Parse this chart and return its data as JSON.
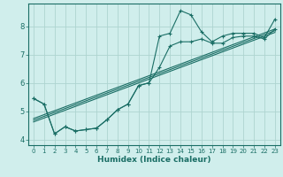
{
  "xlabel": "Humidex (Indice chaleur)",
  "bg_color": "#d0eeec",
  "grid_color": "#aed4d0",
  "line_color": "#1a6e65",
  "xlim": [
    -0.5,
    23.5
  ],
  "ylim": [
    3.8,
    8.8
  ],
  "yticks": [
    4,
    5,
    6,
    7,
    8
  ],
  "xticks": [
    0,
    1,
    2,
    3,
    4,
    5,
    6,
    7,
    8,
    9,
    10,
    11,
    12,
    13,
    14,
    15,
    16,
    17,
    18,
    19,
    20,
    21,
    22,
    23
  ],
  "curve1_x": [
    0,
    1,
    2,
    3,
    4,
    5,
    6,
    7,
    8,
    9,
    10,
    11,
    12,
    13,
    14,
    15,
    16,
    17,
    18,
    19,
    20,
    21,
    22,
    23
  ],
  "curve1_y": [
    5.45,
    5.25,
    4.2,
    4.45,
    4.3,
    4.35,
    4.4,
    4.7,
    5.05,
    5.25,
    5.9,
    6.0,
    6.55,
    7.3,
    7.45,
    7.45,
    7.55,
    7.4,
    7.4,
    7.6,
    7.65,
    7.65,
    7.55,
    7.9
  ],
  "curve2_x": [
    0,
    1,
    2,
    3,
    4,
    5,
    6,
    7,
    8,
    9,
    10,
    11,
    12,
    13,
    14,
    15,
    16,
    17,
    18,
    19,
    20,
    21,
    22,
    23
  ],
  "curve2_y": [
    5.45,
    5.25,
    4.2,
    4.45,
    4.3,
    4.35,
    4.4,
    4.7,
    5.05,
    5.25,
    5.9,
    6.0,
    7.65,
    7.75,
    8.55,
    8.4,
    7.8,
    7.45,
    7.65,
    7.75,
    7.75,
    7.75,
    7.6,
    8.25
  ],
  "reg_lines": [
    [
      [
        0,
        23
      ],
      [
        4.62,
        7.78
      ]
    ],
    [
      [
        0,
        23
      ],
      [
        4.68,
        7.84
      ]
    ],
    [
      [
        0,
        23
      ],
      [
        4.74,
        7.9
      ]
    ]
  ]
}
